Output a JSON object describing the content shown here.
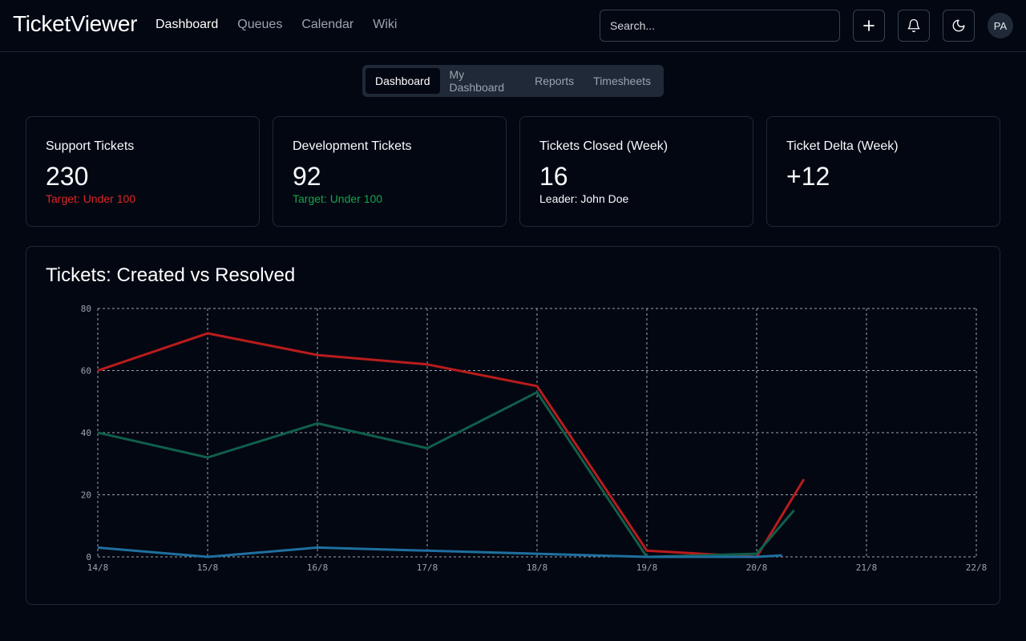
{
  "app": {
    "brand": "TicketViewer"
  },
  "nav": {
    "items": [
      "Dashboard",
      "Queues",
      "Calendar",
      "Wiki"
    ],
    "active": 0
  },
  "search": {
    "placeholder": "Search..."
  },
  "header": {
    "icons": [
      "plus-icon",
      "bell-icon",
      "moon-icon"
    ],
    "avatar_initials": "PA"
  },
  "tabs": {
    "items": [
      "Dashboard",
      "My Dashboard",
      "Reports",
      "Timesheets"
    ],
    "active": 0
  },
  "stats": [
    {
      "title": "Support Tickets",
      "value": "230",
      "sub": "Target: Under 100",
      "sub_color": "#dc2626"
    },
    {
      "title": "Development Tickets",
      "value": "92",
      "sub": "Target: Under 100",
      "sub_color": "#16a34a"
    },
    {
      "title": "Tickets Closed (Week)",
      "value": "16",
      "sub": "Leader: John Doe",
      "sub_color": "#f9fafb"
    },
    {
      "title": "Ticket Delta (Week)",
      "value": "+12",
      "value_color": "#dc2626",
      "sub": ""
    }
  ],
  "chart": {
    "title": "Tickets: Created vs Resolved"
  },
  "chart_data": {
    "type": "line",
    "x_ticks": [
      "14/8",
      "15/8",
      "16/8",
      "17/8",
      "18/8",
      "19/8",
      "20/8",
      "21/8",
      "22/8"
    ],
    "ylim": [
      0,
      80
    ],
    "y_ticks": [
      0,
      20,
      40,
      60,
      80
    ],
    "grid": true,
    "series": [
      {
        "color": "#b91c1c",
        "x": [
          0,
          1,
          2,
          3,
          4,
          5,
          6,
          6.43
        ],
        "values": [
          60,
          72,
          65,
          62,
          55,
          2,
          0,
          25
        ]
      },
      {
        "color": "#0f5f4a",
        "x": [
          0,
          1,
          2,
          3,
          4,
          5,
          6,
          6.34
        ],
        "values": [
          40,
          32,
          43,
          35,
          53,
          0,
          1,
          15
        ]
      },
      {
        "color": "#1f6fa0",
        "x": [
          0,
          1,
          2,
          3,
          4,
          5,
          6,
          6.23
        ],
        "values": [
          3,
          0,
          3,
          2,
          1,
          0,
          0,
          0.5
        ]
      }
    ]
  }
}
